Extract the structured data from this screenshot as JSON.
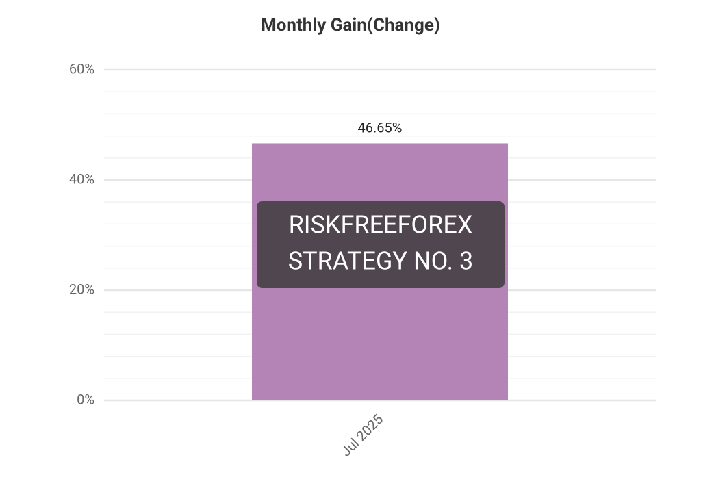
{
  "chart_data": {
    "type": "bar",
    "title": "Monthly Gain(Change)",
    "categories": [
      "Jul 2025"
    ],
    "values": [
      46.65
    ],
    "value_labels": [
      "46.65%"
    ],
    "color": "#b384b5",
    "ylim": [
      0,
      60
    ],
    "yticks": [
      {
        "value": 0,
        "label": "0%"
      },
      {
        "value": 20,
        "label": "20%"
      },
      {
        "value": 40,
        "label": "40%"
      },
      {
        "value": 60,
        "label": "60%"
      }
    ],
    "minor_yticks": [
      4,
      8,
      12,
      16,
      24,
      28,
      32,
      36,
      44,
      48,
      52,
      56
    ],
    "grid": true,
    "watermark": [
      "RISKFREEFOREX",
      "STRATEGY NO. 3"
    ]
  }
}
